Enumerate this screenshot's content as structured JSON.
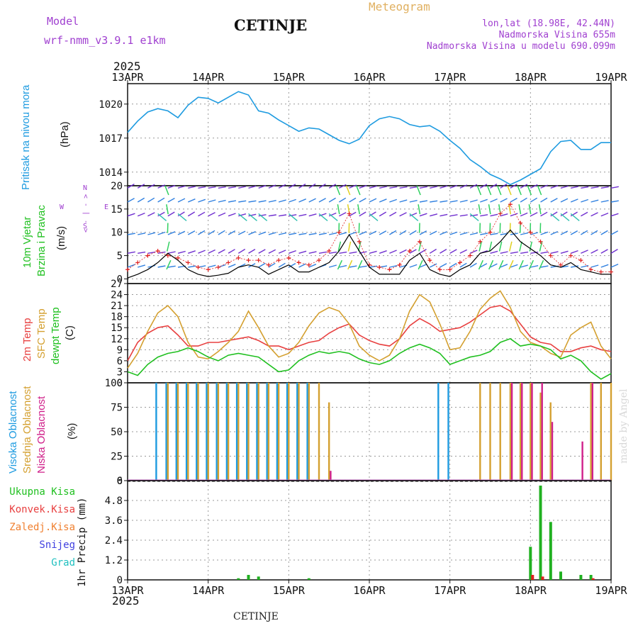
{
  "header": {
    "model_label": "Model",
    "model_name": "wrf-nmm_v3.9.1  e1km",
    "station": "CETINJE",
    "meteogram_label": "Meteogram",
    "lonlat": "lon,lat (18.98E, 42.44N)",
    "elevation": "Nadmorska Visina 655m",
    "model_elevation": "Nadmorska Visina u modelu 690.099m",
    "year": "2025"
  },
  "footer": {
    "station": "CETINJE",
    "year": "2025"
  },
  "watermark": "made by Angel",
  "colors": {
    "pressure": "#1e9be0",
    "wind_speed": "#000000",
    "wind_gust": "#e02020",
    "t2m": "#e84040",
    "tsfc": "#d4a030",
    "dewpt": "#20c020",
    "cloud_high": "#1e9be0",
    "cloud_mid": "#d4a030",
    "cloud_low": "#d0208a",
    "precip_total": "#20b020",
    "precip_conv": "#e02020",
    "header_purple": "#a040d0",
    "meteogram_orange": "#e0b060"
  },
  "chart_data": [
    {
      "panel": "pressure",
      "type": "line",
      "x_ticks": [
        "13APR",
        "14APR",
        "15APR",
        "16APR",
        "17APR",
        "18APR",
        "19APR"
      ],
      "ylabel_lines": [
        "Pritisak na nivou mora",
        "(hPa)"
      ],
      "yticks": [
        "1014",
        "1017",
        "1020"
      ],
      "ylim": [
        1012.8,
        1021.8
      ],
      "grid": true,
      "x_step_hours": 3,
      "series": [
        {
          "name": "Pritisak na nivou mora",
          "values": [
            1017.5,
            1018.5,
            1019.3,
            1019.6,
            1019.4,
            1018.8,
            1019.9,
            1020.6,
            1020.5,
            1020.1,
            1020.6,
            1021.1,
            1020.8,
            1019.4,
            1019.2,
            1018.6,
            1018.1,
            1017.6,
            1017.9,
            1017.8,
            1017.3,
            1016.8,
            1016.5,
            1016.9,
            1018.1,
            1018.7,
            1018.9,
            1018.7,
            1018.2,
            1018.0,
            1018.1,
            1017.6,
            1016.8,
            1016.1,
            1015.1,
            1014.5,
            1013.8,
            1013.4,
            1012.9,
            1013.3,
            1013.8,
            1014.3,
            1015.8,
            1016.7,
            1016.8,
            1016.0,
            1016.0,
            1016.6,
            1016.6
          ]
        }
      ]
    },
    {
      "panel": "wind",
      "type": "line",
      "ylabel_lines": [
        "10m Vjetar",
        "Brzina i Pravac",
        "(m/s)"
      ],
      "direction_key": [
        "W",
        "< - | - >",
        "E",
        "N",
        "S"
      ],
      "yticks": [
        "0",
        "5",
        "10",
        "15",
        "20"
      ],
      "ylim": [
        -1,
        20
      ],
      "grid": true,
      "x_step_hours": 3,
      "series": [
        {
          "name": "brzina",
          "values": [
            0.2,
            1.0,
            2.0,
            3.5,
            5.5,
            4.0,
            2.0,
            1.0,
            0.5,
            0.8,
            1.2,
            2.5,
            3.0,
            2.5,
            1.0,
            2.0,
            3.0,
            1.5,
            1.5,
            2.5,
            3.5,
            6.0,
            9.5,
            6.0,
            2.5,
            1.0,
            1.0,
            1.0,
            4.0,
            5.5,
            2.0,
            1.0,
            0.5,
            2.0,
            3.0,
            5.5,
            6.0,
            8.0,
            10.5,
            8.0,
            6.5,
            5.0,
            3.0,
            2.5,
            3.5,
            2.0,
            1.5,
            1.0,
            1.0
          ]
        },
        {
          "name": "udar",
          "values": [
            2.0,
            3.5,
            5.0,
            6.0,
            5.0,
            4.5,
            3.5,
            2.5,
            2.0,
            2.5,
            3.5,
            4.5,
            4.0,
            4.0,
            3.0,
            4.0,
            4.5,
            3.5,
            3.0,
            4.0,
            6.0,
            10.0,
            14.0,
            8.0,
            3.0,
            2.5,
            2.0,
            3.0,
            6.0,
            8.0,
            4.0,
            2.0,
            2.0,
            3.5,
            5.0,
            8.0,
            10.0,
            14.0,
            16.0,
            12.0,
            10.0,
            8.0,
            5.0,
            3.0,
            5.0,
            4.0,
            2.0,
            1.5,
            1.5
          ]
        }
      ]
    },
    {
      "panel": "temperature",
      "type": "line",
      "ylabel_lines": [
        "2m Temp",
        "SFC Temp",
        "dewpt Temp",
        "(C)"
      ],
      "yticks": [
        "0",
        "3",
        "6",
        "9",
        "12",
        "15",
        "18",
        "21",
        "24",
        "27"
      ],
      "ylim": [
        0,
        27
      ],
      "grid": true,
      "x_step_hours": 3,
      "series": [
        {
          "name": "2m Temp",
          "values": [
            6.0,
            11.0,
            13.5,
            15.0,
            15.5,
            13.0,
            10.0,
            10.0,
            11.0,
            11.0,
            11.5,
            12.0,
            12.5,
            11.5,
            10.0,
            10.0,
            9.0,
            10.0,
            11.0,
            11.5,
            13.5,
            15.0,
            16.0,
            13.0,
            11.5,
            10.5,
            10.0,
            12.0,
            15.5,
            17.5,
            16.0,
            14.0,
            14.5,
            15.0,
            16.5,
            18.5,
            20.5,
            21.0,
            19.5,
            16.0,
            12.5,
            11.0,
            10.5,
            8.5,
            8.5,
            9.5,
            10.0,
            9.0,
            8.5
          ]
        },
        {
          "name": "SFC Temp",
          "values": [
            4.0,
            8.0,
            14.0,
            19.0,
            21.0,
            18.0,
            11.0,
            7.0,
            6.5,
            8.5,
            11.0,
            14.0,
            19.5,
            15.0,
            10.0,
            7.0,
            8.0,
            11.0,
            15.5,
            19.0,
            20.5,
            19.5,
            16.0,
            10.0,
            7.5,
            6.0,
            7.5,
            12.0,
            19.5,
            24.0,
            22.0,
            16.0,
            9.0,
            9.5,
            14.0,
            20.0,
            23.0,
            25.0,
            20.5,
            14.0,
            11.0,
            10.0,
            8.0,
            7.0,
            13.0,
            15.0,
            16.5,
            10.0,
            6.5
          ]
        },
        {
          "name": "dewpt Temp",
          "values": [
            3.0,
            2.0,
            5.0,
            7.0,
            8.0,
            8.5,
            9.5,
            8.5,
            7.0,
            6.0,
            7.5,
            8.0,
            7.5,
            7.0,
            5.0,
            3.0,
            3.5,
            6.0,
            7.5,
            8.5,
            8.0,
            8.5,
            8.0,
            6.5,
            5.5,
            5.0,
            6.0,
            8.0,
            9.5,
            10.5,
            9.5,
            8.0,
            5.0,
            6.0,
            7.0,
            7.5,
            8.5,
            11.0,
            12.0,
            10.0,
            10.5,
            10.0,
            9.0,
            6.5,
            7.5,
            6.0,
            3.0,
            1.0,
            2.5
          ]
        }
      ]
    },
    {
      "panel": "cloud",
      "type": "bar",
      "ylabel_lines": [
        "Visoka Oblacnost",
        "Srednja Oblacnost",
        "Niska Oblacnost",
        "(%)"
      ],
      "yticks": [
        "0",
        "25",
        "50",
        "75",
        "100"
      ],
      "ylim": [
        0,
        100
      ],
      "grid": true,
      "x_step_hours": 3,
      "series": [
        {
          "name": "Visoka Oblacnost",
          "values": [
            0,
            0,
            0,
            100,
            100,
            100,
            100,
            100,
            100,
            100,
            100,
            100,
            100,
            100,
            100,
            100,
            100,
            100,
            100,
            0,
            0,
            0,
            0,
            0,
            0,
            0,
            0,
            0,
            0,
            0,
            0,
            100,
            100,
            0,
            0,
            0,
            0,
            0,
            0,
            0,
            0,
            0,
            0,
            0,
            0,
            0,
            0,
            0,
            0
          ]
        },
        {
          "name": "Srednja Oblacnost",
          "values": [
            0,
            0,
            0,
            0,
            100,
            100,
            100,
            100,
            100,
            100,
            100,
            100,
            100,
            100,
            100,
            100,
            100,
            100,
            100,
            100,
            80,
            0,
            0,
            0,
            0,
            0,
            0,
            0,
            0,
            0,
            0,
            0,
            0,
            0,
            0,
            100,
            100,
            100,
            100,
            100,
            100,
            90,
            80,
            0,
            0,
            0,
            100,
            100,
            100
          ]
        },
        {
          "name": "Niska Oblacnost",
          "values": [
            0,
            0,
            0,
            0,
            0,
            0,
            0,
            0,
            0,
            0,
            0,
            0,
            0,
            0,
            0,
            0,
            0,
            0,
            0,
            0,
            10,
            0,
            0,
            0,
            0,
            0,
            0,
            0,
            0,
            0,
            0,
            0,
            0,
            0,
            0,
            0,
            0,
            0,
            100,
            100,
            100,
            100,
            60,
            0,
            0,
            40,
            100,
            0,
            0
          ]
        }
      ]
    },
    {
      "panel": "precip",
      "type": "bar",
      "ylabel_lines": [
        "1hr Precip (mm)"
      ],
      "legend": [
        "Ukupna  Kisa",
        "Konvek.Kisa",
        "Zaledj.Kisa",
        "Snijeg",
        "Grad"
      ],
      "yticks": [
        "0",
        "1.2",
        "2.4",
        "3.6",
        "4.8",
        "6"
      ],
      "ylim": [
        0,
        6
      ],
      "grid": true,
      "x_step_hours": 3,
      "series": [
        {
          "name": "Ukupna  Kisa",
          "values": [
            0,
            0,
            0,
            0,
            0,
            0,
            0,
            0,
            0,
            0,
            0,
            0.1,
            0.3,
            0.2,
            0,
            0,
            0,
            0,
            0.1,
            0,
            0,
            0,
            0,
            0,
            0,
            0,
            0,
            0,
            0,
            0,
            0,
            0,
            0,
            0,
            0,
            0,
            0,
            0,
            0,
            0,
            2.0,
            5.7,
            3.5,
            0.5,
            0,
            0.3,
            0.3,
            0,
            0
          ]
        },
        {
          "name": "Konvek.Kisa",
          "values": [
            0,
            0,
            0,
            0,
            0,
            0,
            0,
            0,
            0,
            0,
            0,
            0,
            0,
            0,
            0,
            0,
            0,
            0,
            0,
            0,
            0,
            0,
            0,
            0,
            0,
            0,
            0,
            0,
            0,
            0,
            0,
            0,
            0,
            0,
            0,
            0,
            0,
            0,
            0,
            0,
            0.3,
            0.2,
            0,
            0,
            0,
            0,
            0.1,
            0,
            0
          ]
        }
      ]
    }
  ]
}
